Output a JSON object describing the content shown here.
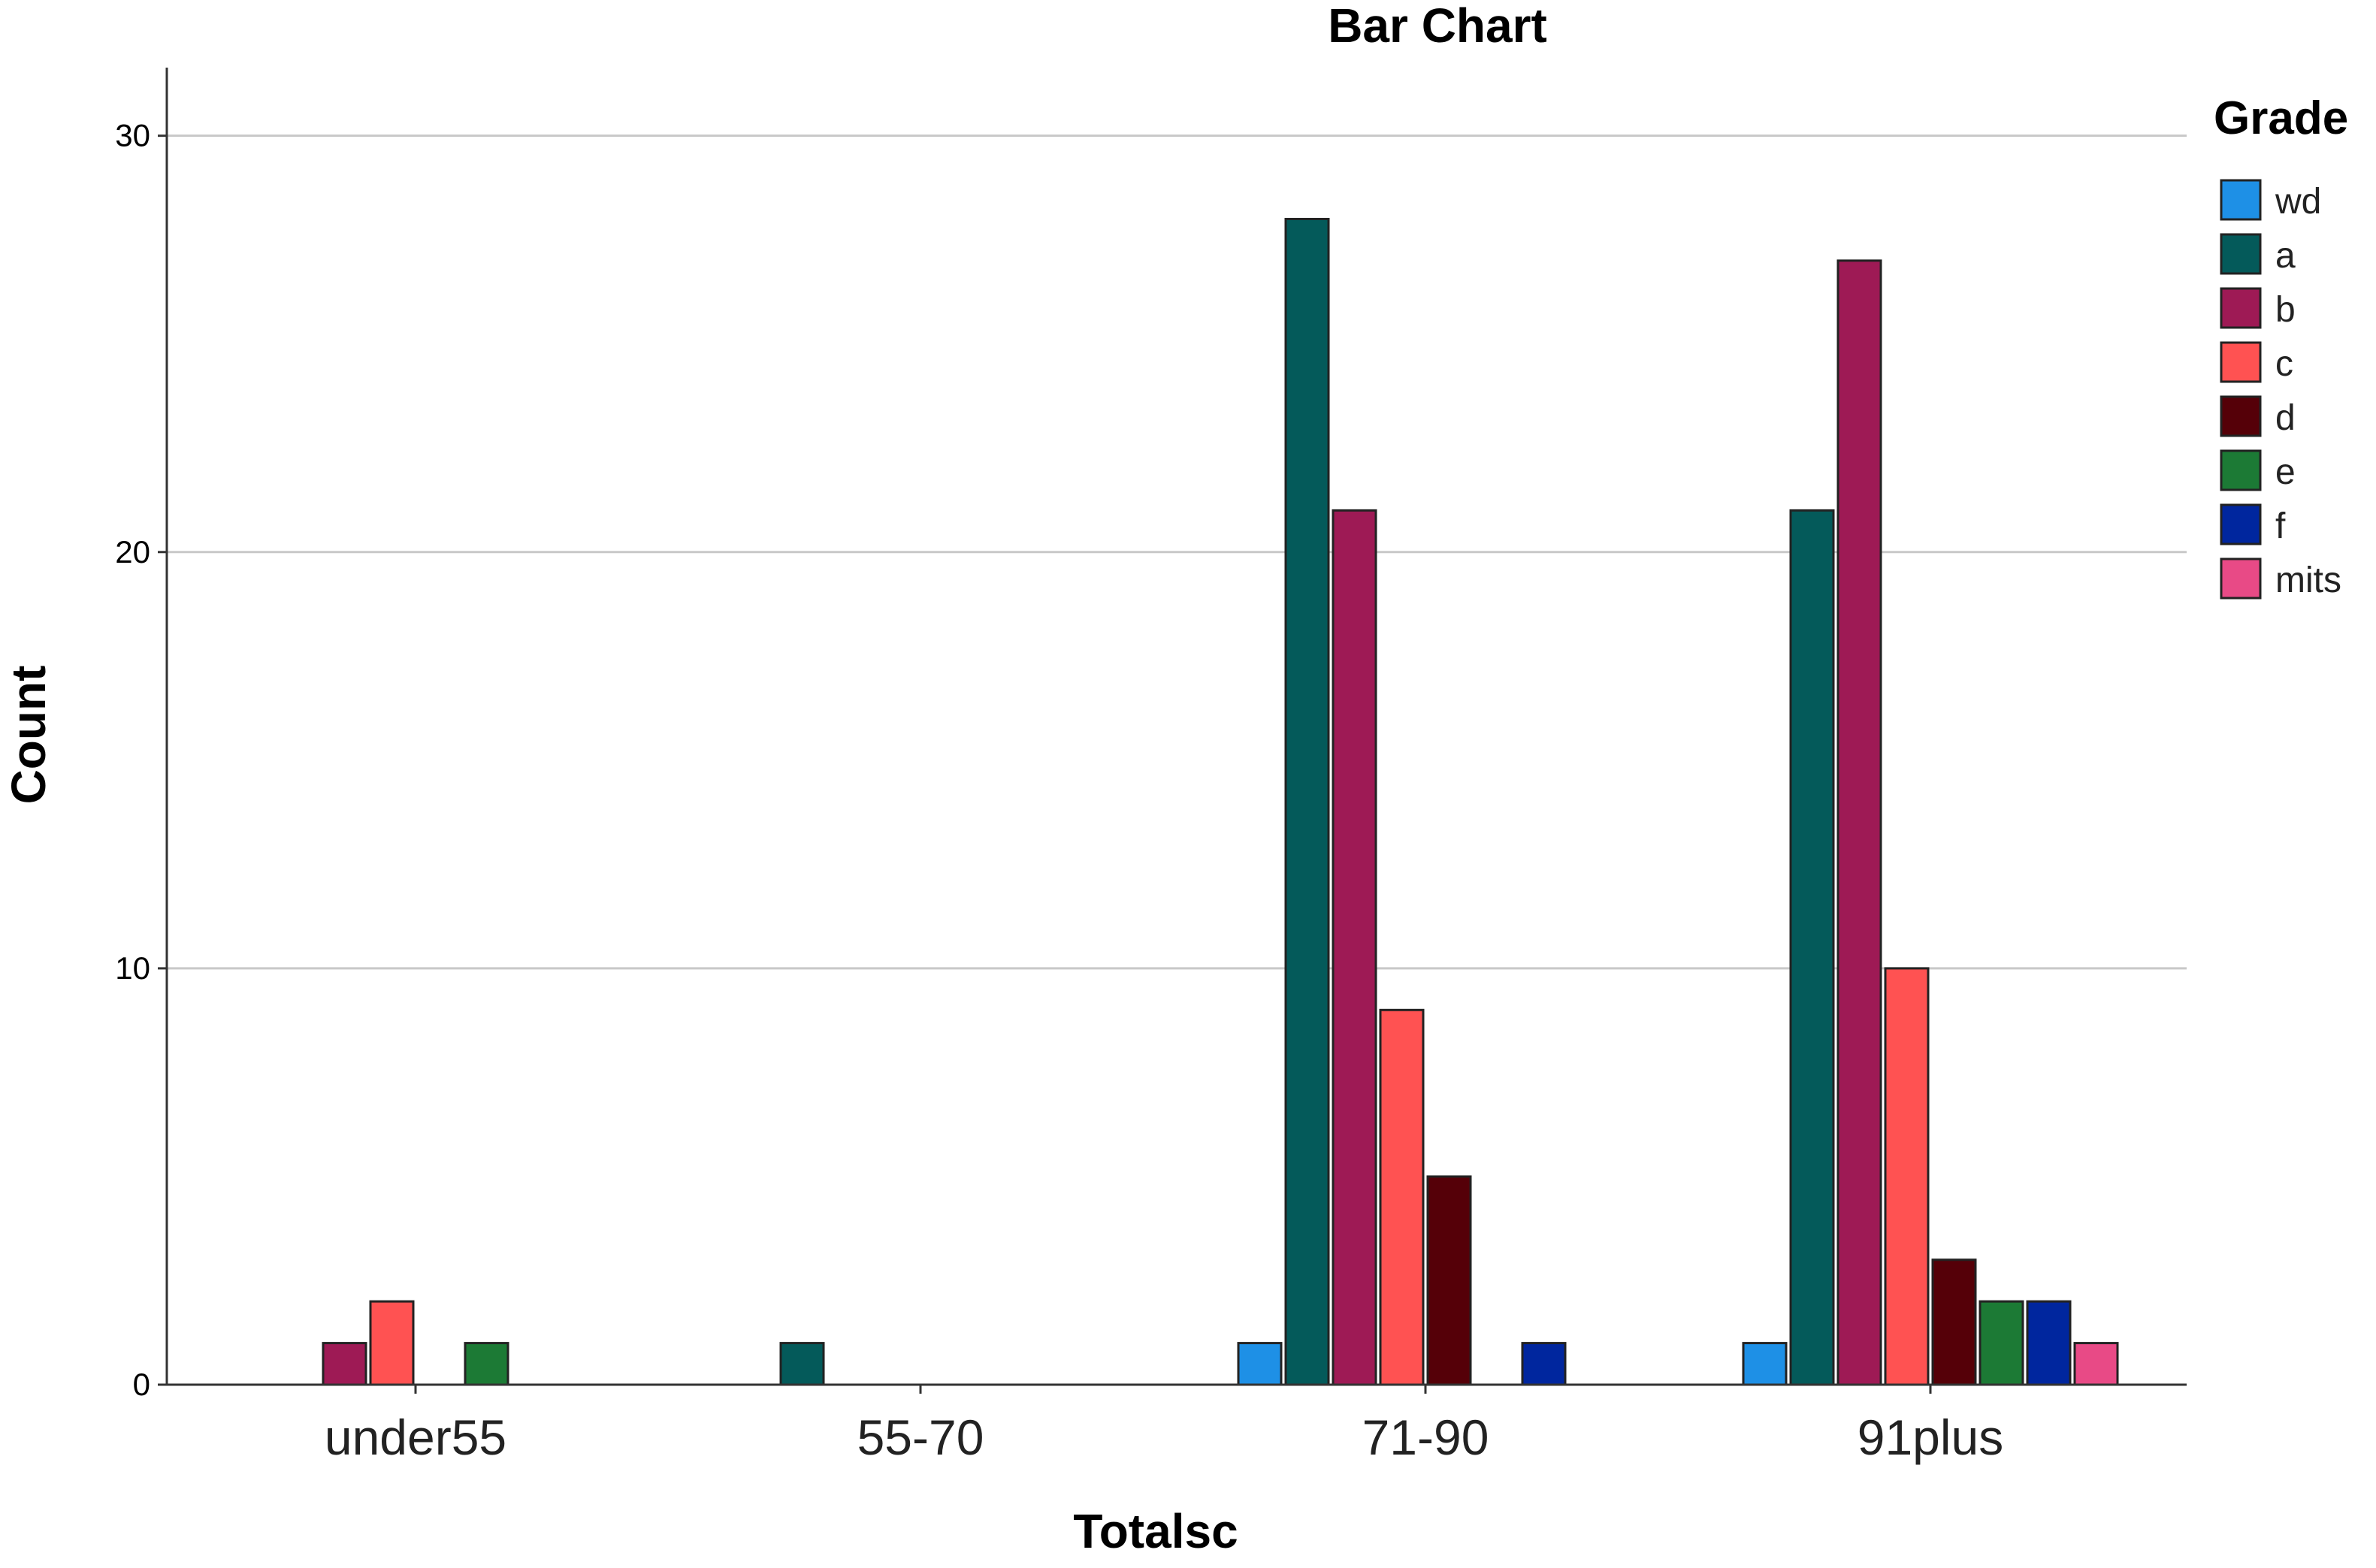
{
  "chart_data": {
    "type": "bar",
    "title": "Bar Chart",
    "xlabel": "Totalsc",
    "ylabel": "Count",
    "ylim": [
      0,
      31.6
    ],
    "yticks": [
      0,
      10,
      20,
      30
    ],
    "grid": true,
    "legend_title": "Grade",
    "legend_position": "right",
    "categories": [
      "under55",
      "55-70",
      "71-90",
      "91plus"
    ],
    "series": [
      {
        "name": "wd",
        "color": "#1E90E6",
        "values": [
          0,
          0,
          1,
          1
        ]
      },
      {
        "name": "a",
        "color": "#045A5A",
        "values": [
          0,
          1,
          28,
          21
        ]
      },
      {
        "name": "b",
        "color": "#9E1A55",
        "values": [
          1,
          0,
          21,
          27
        ]
      },
      {
        "name": "c",
        "color": "#FF5252",
        "values": [
          2,
          0,
          9,
          10
        ]
      },
      {
        "name": "d",
        "color": "#550008",
        "values": [
          0,
          0,
          5,
          3
        ]
      },
      {
        "name": "e",
        "color": "#1C7A35",
        "values": [
          1,
          0,
          0,
          2
        ]
      },
      {
        "name": "f",
        "color": "#00269E",
        "values": [
          0,
          0,
          1,
          2
        ]
      },
      {
        "name": "mits",
        "color": "#E84A86",
        "values": [
          0,
          0,
          0,
          1
        ]
      }
    ]
  }
}
